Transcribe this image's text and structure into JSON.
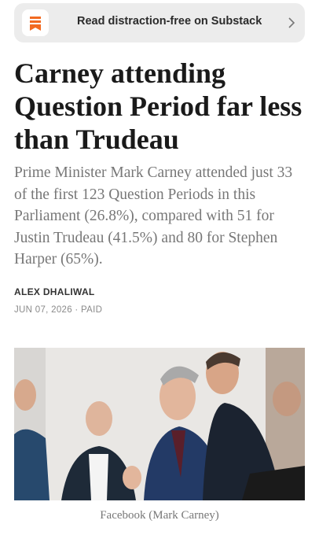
{
  "banner": {
    "text": "Read distraction-free on Substack"
  },
  "article": {
    "title": "Carney attending Question Period far less than Trudeau",
    "subtitle": "Prime Minister Mark Carney attended just 33 of the first 123 Question Periods in this Parliament (26.8%), compared with 51 for Justin Trudeau (41.5%) and 80 for Stephen Harper (65%).",
    "author": "ALEX DHALIWAL",
    "meta": "JUN 07, 2026 · PAID",
    "caption": "Facebook (Mark Carney)"
  }
}
